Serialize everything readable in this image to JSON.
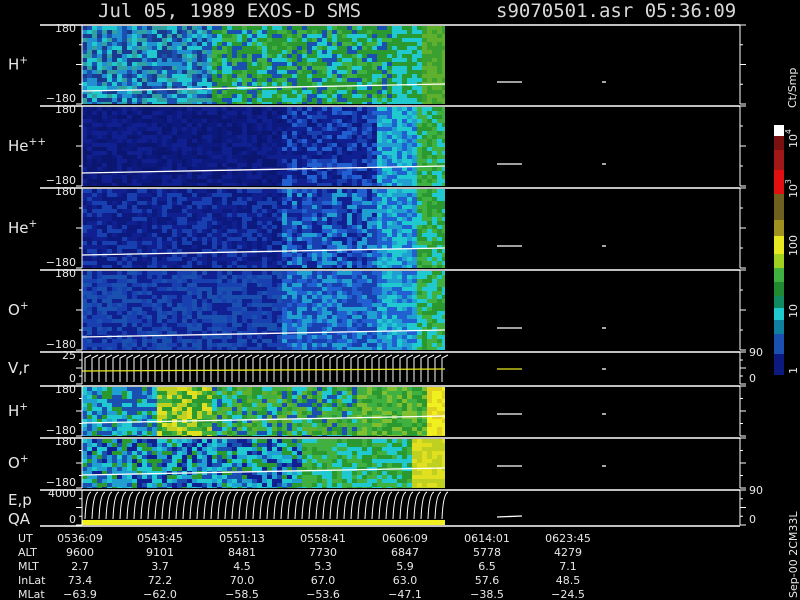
{
  "header": {
    "title": "Jul 05, 1989   EXOS-D SMS",
    "file": "s9070501.asr  05:36:09"
  },
  "panels": [
    {
      "label": {
        "base": "H",
        "sup": "+"
      },
      "ticks": [
        "180",
        "−180"
      ]
    },
    {
      "label": {
        "base": "He",
        "sup": "++"
      },
      "ticks": [
        "180",
        "−180"
      ]
    },
    {
      "label": {
        "base": "He",
        "sup": "+"
      },
      "ticks": [
        "180",
        "−180"
      ]
    },
    {
      "label": {
        "base": "O",
        "sup": "+"
      },
      "ticks": [
        "180",
        "−180"
      ]
    },
    {
      "label": {
        "base": "V,r"
      },
      "ticks": [
        "25",
        "0"
      ],
      "right_ticks": [
        "90",
        "0"
      ]
    },
    {
      "label": {
        "base": "H",
        "sup": "+"
      },
      "ticks": [
        "180",
        "−180"
      ]
    },
    {
      "label": {
        "base": "O",
        "sup": "+"
      },
      "ticks": [
        "180",
        "−180"
      ]
    },
    {
      "label": {
        "base": "E,p"
      },
      "label2": "QA",
      "ticks": [
        "4000",
        "0"
      ],
      "right_ticks": [
        "90",
        "0"
      ]
    }
  ],
  "colorbar": {
    "title": "Ct/Smp",
    "ticks": [
      {
        "base": "10",
        "sup": "4"
      },
      {
        "base": "10",
        "sup": "3"
      },
      {
        "base": "100"
      },
      {
        "base": "10"
      },
      {
        "base": "1"
      }
    ]
  },
  "table": {
    "row_labels": [
      "UT",
      "ALT",
      "MLT",
      "InLat",
      "MLat"
    ],
    "rows": [
      [
        "0536:09",
        "0543:45",
        "0551:13",
        "0558:41",
        "0606:09",
        "0614:01",
        "0623:45"
      ],
      [
        "9600",
        "9101",
        "8481",
        "7730",
        "6847",
        "5778",
        "4279"
      ],
      [
        "2.7",
        "3.7",
        "4.5",
        "5.3",
        "5.9",
        "6.5",
        "7.1"
      ],
      [
        "73.4",
        "72.2",
        "70.0",
        "67.0",
        "63.0",
        "57.6",
        "48.5"
      ],
      [
        "−63.9",
        "−62.0",
        "−58.5",
        "−53.6",
        "−47.1",
        "−38.5",
        "−24.5"
      ]
    ]
  },
  "footer": "Sep-00 2CM33L"
}
